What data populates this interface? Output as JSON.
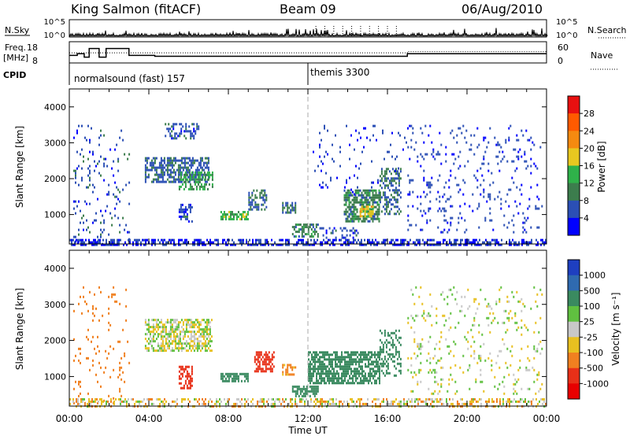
{
  "header": {
    "station": "King Salmon (fitACF)",
    "beam": "Beam 09",
    "date": "06/Aug/2010"
  },
  "noise_panel": {
    "left_label": "N.Sky",
    "right_label": "N.Search",
    "yticks_left": [
      "10^5",
      "10^0"
    ],
    "yticks_right": [
      "10^5",
      "10^0"
    ]
  },
  "freq_panel": {
    "left_label_line1": "Freq.",
    "left_label_line2": "[MHz]",
    "right_label": "Nave",
    "yticks_left": [
      "18",
      "8"
    ],
    "yticks_right": [
      "60",
      "0"
    ]
  },
  "cpid_panel": {
    "label": "CPID",
    "segments": [
      {
        "start_hour": 0.0,
        "text": "normalsound (fast) 157"
      },
      {
        "start_hour": 12.0,
        "text": "themis 3300"
      }
    ]
  },
  "axes": {
    "ylabel": "Slant Range [km]",
    "xlabel": "Time UT",
    "yticks": [
      "1000",
      "2000",
      "3000",
      "4000"
    ],
    "xticks": [
      "00:00",
      "04:00",
      "08:00",
      "12:00",
      "16:00",
      "20:00",
      "00:00"
    ]
  },
  "power_colorbar": {
    "label": "Power [dB]",
    "ticks": [
      "4",
      "8",
      "12",
      "16",
      "20",
      "24",
      "28"
    ],
    "colors": [
      "#0000ff",
      "#2b4fb5",
      "#3c7d4d",
      "#2fb24a",
      "#e8c820",
      "#f58a10",
      "#ff5a00",
      "#e81010"
    ]
  },
  "velocity_colorbar": {
    "label": "Velocity [m s⁻¹]",
    "ticks": [
      "1000",
      "500",
      "100",
      "25",
      "-25",
      "-100",
      "-500",
      "-1000"
    ],
    "colors": [
      "#1e3fc0",
      "#2f6ab0",
      "#3a8a60",
      "#60c040",
      "#c8c8c8",
      "#e8c020",
      "#f08020",
      "#e83018",
      "#e80000"
    ]
  },
  "chart_data": [
    {
      "type": "line",
      "title": "N.Sky / N.Search",
      "x_range_hours": [
        0,
        24
      ],
      "y_scale": "log",
      "ylim": [
        "10^0",
        "10^5"
      ]
    },
    {
      "type": "line",
      "title": "Freq. [MHz] / Nave",
      "x_range_hours": [
        0,
        24
      ],
      "ylim_left": [
        8,
        18
      ],
      "ylim_right": [
        0,
        60
      ],
      "freq_steps": [
        {
          "t0": 0.0,
          "t1": 0.4,
          "freq_mhz": 11
        },
        {
          "t0": 0.4,
          "t1": 0.75,
          "freq_mhz": 12
        },
        {
          "t0": 0.75,
          "t1": 1.0,
          "freq_mhz": 10
        },
        {
          "t0": 1.0,
          "t1": 1.5,
          "freq_mhz": 15
        },
        {
          "t0": 1.5,
          "t1": 1.85,
          "freq_mhz": 10
        },
        {
          "t0": 1.85,
          "t1": 3.0,
          "freq_mhz": 15
        },
        {
          "t0": 3.0,
          "t1": 4.3,
          "freq_mhz": 11
        },
        {
          "t0": 4.3,
          "t1": 17.0,
          "freq_mhz": 10.5
        },
        {
          "t0": 17.0,
          "t1": 24.0,
          "freq_mhz": 12
        }
      ]
    },
    {
      "type": "heatmap",
      "title": "Power [dB]",
      "x_range_hours": [
        0,
        24
      ],
      "ylim_km": [
        180,
        4500
      ],
      "color_range_db": [
        0,
        30
      ],
      "regions": [
        {
          "t0": 0.2,
          "t1": 3.0,
          "r0": 200,
          "r1": 3500,
          "density": 0.08,
          "value": 6
        },
        {
          "t0": 3.8,
          "t1": 7.0,
          "r0": 1900,
          "r1": 2600,
          "density": 0.6,
          "value": 7
        },
        {
          "t0": 5.5,
          "t1": 7.2,
          "r0": 1700,
          "r1": 2200,
          "density": 0.5,
          "value": 12
        },
        {
          "t0": 4.8,
          "t1": 6.5,
          "r0": 3100,
          "r1": 3550,
          "density": 0.35,
          "value": 6
        },
        {
          "t0": 5.5,
          "t1": 6.2,
          "r0": 800,
          "r1": 1300,
          "density": 0.5,
          "value": 6
        },
        {
          "t0": 7.6,
          "t1": 9.0,
          "r0": 850,
          "r1": 1100,
          "density": 0.7,
          "value": 14
        },
        {
          "t0": 9.0,
          "t1": 9.9,
          "r0": 1150,
          "r1": 1700,
          "density": 0.45,
          "value": 8
        },
        {
          "t0": 10.7,
          "t1": 11.4,
          "r0": 1050,
          "r1": 1350,
          "density": 0.6,
          "value": 9
        },
        {
          "t0": 11.2,
          "t1": 12.5,
          "r0": 400,
          "r1": 750,
          "density": 0.55,
          "value": 10
        },
        {
          "t0": 12.5,
          "t1": 14.5,
          "r0": 350,
          "r1": 650,
          "density": 0.35,
          "value": 6
        },
        {
          "t0": 13.8,
          "t1": 15.6,
          "r0": 800,
          "r1": 1700,
          "density": 0.7,
          "value": 10
        },
        {
          "t0": 15.6,
          "t1": 16.7,
          "r0": 1000,
          "r1": 2300,
          "density": 0.4,
          "value": 8
        },
        {
          "t0": 14.6,
          "t1": 15.3,
          "r0": 950,
          "r1": 1250,
          "density": 0.6,
          "value": 18
        },
        {
          "t0": 12.0,
          "t1": 17.0,
          "r0": 1500,
          "r1": 3500,
          "density": 0.05,
          "value": 5
        },
        {
          "t0": 17.0,
          "t1": 23.8,
          "r0": 500,
          "r1": 3500,
          "density": 0.08,
          "value": 5
        },
        {
          "t0": 0.0,
          "t1": 24.0,
          "r0": 180,
          "r1": 320,
          "density": 0.55,
          "value": 4
        }
      ]
    },
    {
      "type": "heatmap",
      "title": "Velocity [m s⁻¹]",
      "x_range_hours": [
        0,
        24
      ],
      "ylim_km": [
        180,
        4500
      ],
      "color_range_ms": [
        -1000,
        1000
      ],
      "regions": [
        {
          "t0": 0.2,
          "t1": 3.0,
          "r0": 200,
          "r1": 3500,
          "density": 0.06,
          "value": -200
        },
        {
          "t0": 3.8,
          "t1": 7.2,
          "r0": 1700,
          "r1": 2600,
          "density": 0.6,
          "value": 0
        },
        {
          "t0": 5.5,
          "t1": 6.2,
          "r0": 700,
          "r1": 1300,
          "density": 0.55,
          "value": -600
        },
        {
          "t0": 7.6,
          "t1": 9.0,
          "r0": 850,
          "r1": 1100,
          "density": 0.7,
          "value": 200
        },
        {
          "t0": 9.3,
          "t1": 10.3,
          "r0": 1150,
          "r1": 1700,
          "density": 0.6,
          "value": -700
        },
        {
          "t0": 10.7,
          "t1": 11.4,
          "r0": 1050,
          "r1": 1350,
          "density": 0.6,
          "value": -150
        },
        {
          "t0": 11.2,
          "t1": 12.5,
          "r0": 450,
          "r1": 750,
          "density": 0.6,
          "value": 250
        },
        {
          "t0": 12.0,
          "t1": 15.6,
          "r0": 800,
          "r1": 1700,
          "density": 0.7,
          "value": 300
        },
        {
          "t0": 15.6,
          "t1": 16.7,
          "r0": 1000,
          "r1": 2300,
          "density": 0.4,
          "value": 400
        },
        {
          "t0": 17.0,
          "t1": 23.8,
          "r0": 500,
          "r1": 3500,
          "density": 0.08,
          "value": 0
        },
        {
          "t0": 0.0,
          "t1": 24.0,
          "r0": 180,
          "r1": 400,
          "density": 0.4,
          "value": -50
        }
      ]
    }
  ]
}
